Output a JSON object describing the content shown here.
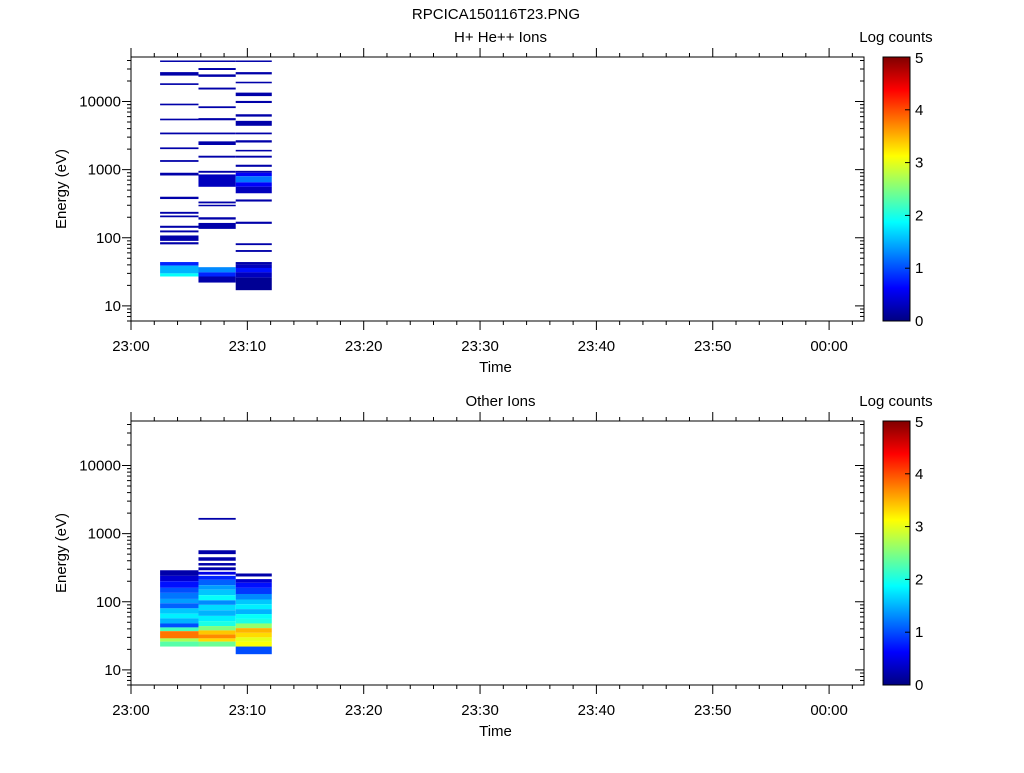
{
  "figure": {
    "title": "RPCICA150116T23.PNG"
  },
  "colorscale": {
    "stops": [
      "#000080",
      "#0000ff",
      "#0080ff",
      "#00ffff",
      "#80ff80",
      "#ffff00",
      "#ff8000",
      "#ff0000",
      "#800000"
    ]
  },
  "chart_data": [
    {
      "type": "heatmap",
      "title": "H+ He++ Ions",
      "xlabel": "Time",
      "ylabel": "Energy (eV)",
      "x_ticks": [
        "23:00",
        "23:10",
        "23:20",
        "23:30",
        "23:40",
        "23:50",
        "00:00"
      ],
      "xlim": [
        "23:00",
        "00:03"
      ],
      "y_scale": "log",
      "y_ticks": [
        "10",
        "100",
        "1000",
        "10000"
      ],
      "ylim": [
        6,
        45000
      ],
      "colorbar_label": "Log counts",
      "colorbar_ticks": [
        "0",
        "1",
        "2",
        "3",
        "4",
        "5"
      ],
      "clim": [
        0,
        5
      ],
      "time_bins": [
        {
          "start": "23:02.5",
          "end": "23:05.8",
          "cells": [
            {
              "e": [
                39000,
                40000
              ],
              "v": 0.2
            },
            {
              "e": [
                24000,
                27000
              ],
              "v": 0.2
            },
            {
              "e": [
                17500,
                18500
              ],
              "v": 0.2
            },
            {
              "e": [
                8800,
                9300
              ],
              "v": 0.2
            },
            {
              "e": [
                5300,
                5600
              ],
              "v": 0.2
            },
            {
              "e": [
                3300,
                3500
              ],
              "v": 0.2
            },
            {
              "e": [
                2000,
                2120
              ],
              "v": 0.2
            },
            {
              "e": [
                1300,
                1380
              ],
              "v": 0.2
            },
            {
              "e": [
                820,
                900
              ],
              "v": 0.2
            },
            {
              "e": [
                370,
                400
              ],
              "v": 0.2
            },
            {
              "e": [
                225,
                240
              ],
              "v": 0.2
            },
            {
              "e": [
                200,
                212
              ],
              "v": 0.2
            },
            {
              "e": [
                140,
                150
              ],
              "v": 0.2
            },
            {
              "e": [
                120,
                128
              ],
              "v": 0.2
            },
            {
              "e": [
                90,
                108
              ],
              "v": 0.2
            },
            {
              "e": [
                80,
                86
              ],
              "v": 0.2
            },
            {
              "e": [
                39,
                44
              ],
              "v": 0.8
            },
            {
              "e": [
                30,
                39
              ],
              "v": 1.5
            },
            {
              "e": [
                27,
                30
              ],
              "v": 1.9
            }
          ]
        },
        {
          "start": "23:05.8",
          "end": "23:09.0",
          "cells": [
            {
              "e": [
                39000,
                40000
              ],
              "v": 0.2
            },
            {
              "e": [
                29000,
                31000
              ],
              "v": 0.2
            },
            {
              "e": [
                23000,
                25000
              ],
              "v": 0.2
            },
            {
              "e": [
                15000,
                16000
              ],
              "v": 0.2
            },
            {
              "e": [
                8000,
                8500
              ],
              "v": 0.2
            },
            {
              "e": [
                5300,
                5700
              ],
              "v": 0.2
            },
            {
              "e": [
                3300,
                3500
              ],
              "v": 0.2
            },
            {
              "e": [
                2300,
                2600
              ],
              "v": 0.2
            },
            {
              "e": [
                1500,
                1600
              ],
              "v": 0.2
            },
            {
              "e": [
                900,
                960
              ],
              "v": 0.2
            },
            {
              "e": [
                560,
                850
              ],
              "v": 0.3
            },
            {
              "e": [
                320,
                340
              ],
              "v": 0.2
            },
            {
              "e": [
                290,
                305
              ],
              "v": 0.2
            },
            {
              "e": [
                185,
                200
              ],
              "v": 0.2
            },
            {
              "e": [
                135,
                165
              ],
              "v": 0.2
            },
            {
              "e": [
                31,
                37
              ],
              "v": 1.3
            },
            {
              "e": [
                27,
                31
              ],
              "v": 0.8
            },
            {
              "e": [
                22,
                27
              ],
              "v": 0.2
            }
          ]
        },
        {
          "start": "23:09.0",
          "end": "23:12.1",
          "cells": [
            {
              "e": [
                39000,
                40000
              ],
              "v": 0.2
            },
            {
              "e": [
                25000,
                27000
              ],
              "v": 0.2
            },
            {
              "e": [
                18500,
                19500
              ],
              "v": 0.2
            },
            {
              "e": [
                12000,
                13500
              ],
              "v": 0.2
            },
            {
              "e": [
                9500,
                10200
              ],
              "v": 0.2
            },
            {
              "e": [
                6000,
                6500
              ],
              "v": 0.2
            },
            {
              "e": [
                4400,
                5200
              ],
              "v": 0.2
            },
            {
              "e": [
                3300,
                3500
              ],
              "v": 0.2
            },
            {
              "e": [
                2500,
                2700
              ],
              "v": 0.2
            },
            {
              "e": [
                1850,
                1950
              ],
              "v": 0.2
            },
            {
              "e": [
                1500,
                1600
              ],
              "v": 0.2
            },
            {
              "e": [
                1100,
                1180
              ],
              "v": 0.2
            },
            {
              "e": [
                900,
                960
              ],
              "v": 0.2
            },
            {
              "e": [
                800,
                900
              ],
              "v": 0.6
            },
            {
              "e": [
                650,
                800
              ],
              "v": 1.2
            },
            {
              "e": [
                560,
                650
              ],
              "v": 0.6
            },
            {
              "e": [
                450,
                560
              ],
              "v": 0.3
            },
            {
              "e": [
                340,
                365
              ],
              "v": 0.2
            },
            {
              "e": [
                160,
                172
              ],
              "v": 0.2
            },
            {
              "e": [
                78,
                83
              ],
              "v": 0.2
            },
            {
              "e": [
                62,
                66
              ],
              "v": 0.2
            },
            {
              "e": [
                40,
                44
              ],
              "v": 0.2
            },
            {
              "e": [
                36,
                40
              ],
              "v": 0.3
            },
            {
              "e": [
                31,
                36
              ],
              "v": 0.7
            },
            {
              "e": [
                26,
                31
              ],
              "v": 0.3
            },
            {
              "e": [
                17,
                26
              ],
              "v": 0.1
            }
          ]
        }
      ]
    },
    {
      "type": "heatmap",
      "title": "Other Ions",
      "xlabel": "Time",
      "ylabel": "Energy (eV)",
      "x_ticks": [
        "23:00",
        "23:10",
        "23:20",
        "23:30",
        "23:40",
        "23:50",
        "00:00"
      ],
      "xlim": [
        "23:00",
        "00:03"
      ],
      "y_scale": "log",
      "y_ticks": [
        "10",
        "100",
        "1000",
        "10000"
      ],
      "ylim": [
        6,
        45000
      ],
      "colorbar_label": "Log counts",
      "colorbar_ticks": [
        "0",
        "1",
        "2",
        "3",
        "4",
        "5"
      ],
      "clim": [
        0,
        5
      ],
      "time_bins": [
        {
          "start": "23:02.5",
          "end": "23:05.8",
          "cells": [
            {
              "e": [
                240,
                290
              ],
              "v": 0.2
            },
            {
              "e": [
                200,
                240
              ],
              "v": 0.4
            },
            {
              "e": [
                160,
                200
              ],
              "v": 0.7
            },
            {
              "e": [
                135,
                160
              ],
              "v": 1.0
            },
            {
              "e": [
                110,
                135
              ],
              "v": 1.2
            },
            {
              "e": [
                95,
                110
              ],
              "v": 1.4
            },
            {
              "e": [
                80,
                95
              ],
              "v": 1.1
            },
            {
              "e": [
                67,
                80
              ],
              "v": 1.6
            },
            {
              "e": [
                57,
                67
              ],
              "v": 1.8
            },
            {
              "e": [
                48,
                57
              ],
              "v": 1.5
            },
            {
              "e": [
                42,
                48
              ],
              "v": 1.0
            },
            {
              "e": [
                37,
                42
              ],
              "v": 2.2
            },
            {
              "e": [
                29,
                37
              ],
              "v": 3.8
            },
            {
              "e": [
                26,
                29
              ],
              "v": 2.7
            },
            {
              "e": [
                22,
                26
              ],
              "v": 2.3
            }
          ]
        },
        {
          "start": "23:05.8",
          "end": "23:09.0",
          "cells": [
            {
              "e": [
                1600,
                1700
              ],
              "v": 0.2
            },
            {
              "e": [
                500,
                570
              ],
              "v": 0.2
            },
            {
              "e": [
                400,
                450
              ],
              "v": 0.2
            },
            {
              "e": [
                340,
                370
              ],
              "v": 0.2
            },
            {
              "e": [
                290,
                320
              ],
              "v": 0.2
            },
            {
              "e": [
                250,
                275
              ],
              "v": 0.5
            },
            {
              "e": [
                210,
                240
              ],
              "v": 0.8
            },
            {
              "e": [
                175,
                210
              ],
              "v": 1.1
            },
            {
              "e": [
                150,
                175
              ],
              "v": 1.4
            },
            {
              "e": [
                125,
                150
              ],
              "v": 1.6
            },
            {
              "e": [
                105,
                125
              ],
              "v": 1.9
            },
            {
              "e": [
                90,
                105
              ],
              "v": 1.3
            },
            {
              "e": [
                75,
                90
              ],
              "v": 1.7
            },
            {
              "e": [
                62,
                75
              ],
              "v": 1.5
            },
            {
              "e": [
                52,
                62
              ],
              "v": 1.8
            },
            {
              "e": [
                44,
                52
              ],
              "v": 2.0
            },
            {
              "e": [
                38,
                44
              ],
              "v": 2.5
            },
            {
              "e": [
                33,
                38
              ],
              "v": 3.4
            },
            {
              "e": [
                29,
                33
              ],
              "v": 3.7
            },
            {
              "e": [
                26,
                29
              ],
              "v": 3.3
            },
            {
              "e": [
                22,
                26
              ],
              "v": 2.4
            }
          ]
        },
        {
          "start": "23:09.0",
          "end": "23:12.1",
          "cells": [
            {
              "e": [
                235,
                260
              ],
              "v": 0.2
            },
            {
              "e": [
                190,
                215
              ],
              "v": 0.4
            },
            {
              "e": [
                160,
                190
              ],
              "v": 0.7
            },
            {
              "e": [
                130,
                160
              ],
              "v": 0.9
            },
            {
              "e": [
                108,
                130
              ],
              "v": 1.3
            },
            {
              "e": [
                92,
                108
              ],
              "v": 1.6
            },
            {
              "e": [
                78,
                92
              ],
              "v": 1.8
            },
            {
              "e": [
                66,
                78
              ],
              "v": 1.5
            },
            {
              "e": [
                56,
                66
              ],
              "v": 1.9
            },
            {
              "e": [
                48,
                56
              ],
              "v": 2.0
            },
            {
              "e": [
                41,
                48
              ],
              "v": 2.6
            },
            {
              "e": [
                35,
                41
              ],
              "v": 3.5
            },
            {
              "e": [
                30,
                35
              ],
              "v": 3.3
            },
            {
              "e": [
                26,
                30
              ],
              "v": 3.0
            },
            {
              "e": [
                22,
                26
              ],
              "v": 3.1
            },
            {
              "e": [
                17,
                22
              ],
              "v": 1.0
            }
          ]
        }
      ]
    }
  ]
}
